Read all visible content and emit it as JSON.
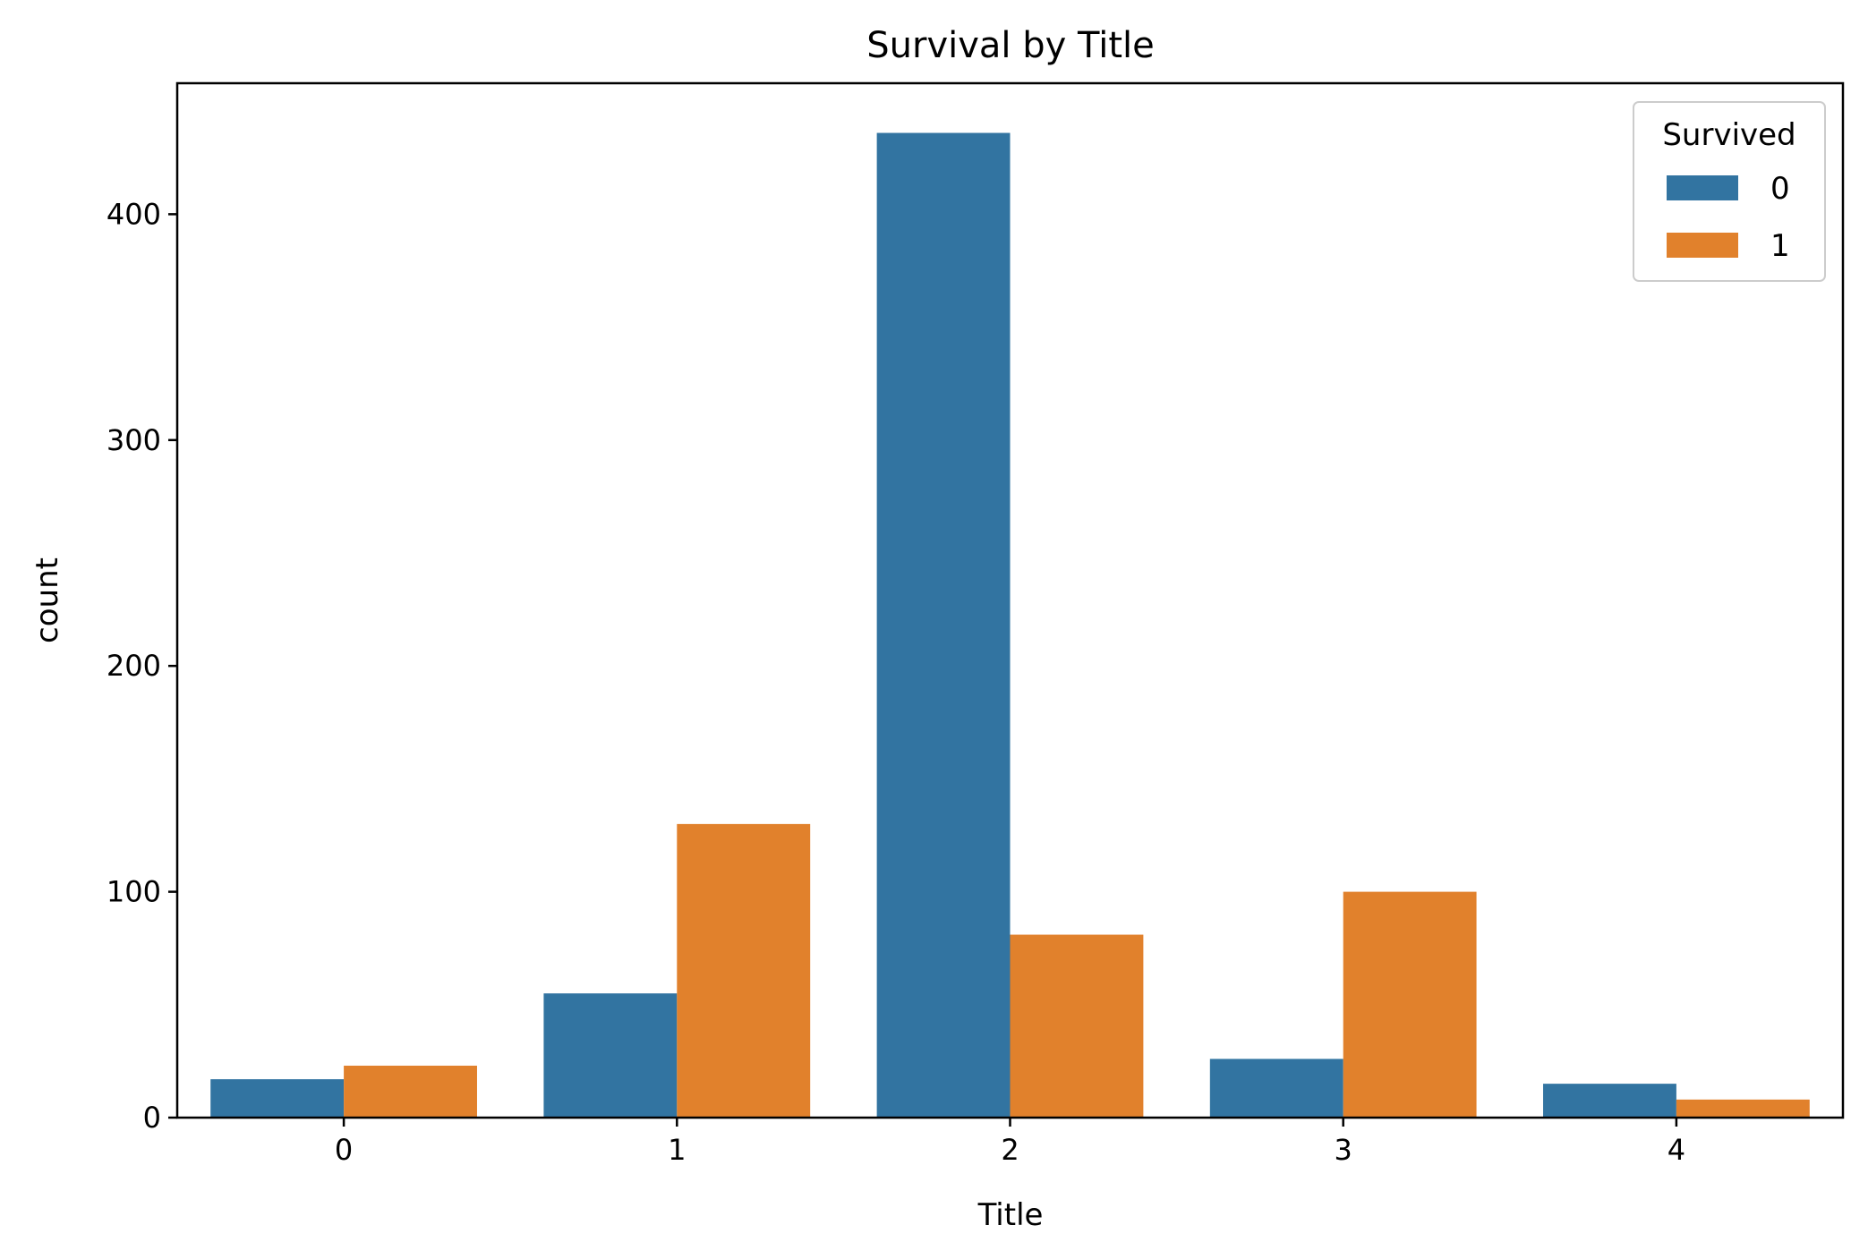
{
  "chart_data": {
    "type": "bar",
    "title": "Survival by Title",
    "xlabel": "Title",
    "ylabel": "count",
    "categories": [
      "0",
      "1",
      "2",
      "3",
      "4"
    ],
    "ylim": [
      0,
      458
    ],
    "yticks": [
      0,
      100,
      200,
      300,
      400
    ],
    "grid": false,
    "legend": {
      "title": "Survived",
      "position": "top-right"
    },
    "series": [
      {
        "name": "0",
        "color": "#3274a1",
        "values": [
          17,
          55,
          436,
          26,
          15
        ]
      },
      {
        "name": "1",
        "color": "#e1812c",
        "values": [
          23,
          130,
          81,
          100,
          8
        ]
      }
    ]
  }
}
